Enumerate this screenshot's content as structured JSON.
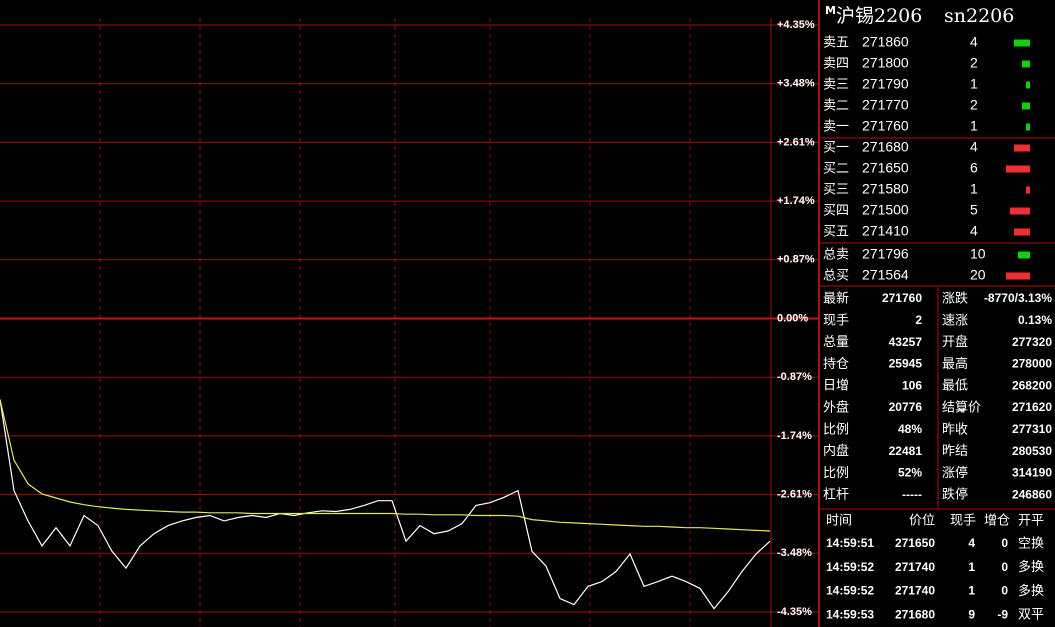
{
  "chart_data": {
    "type": "line",
    "categories": [
      null,
      null,
      null,
      null,
      null,
      null,
      null,
      null,
      null,
      null,
      null,
      null,
      null,
      null,
      null,
      null,
      null,
      null,
      null,
      null,
      null,
      null,
      null,
      null,
      null,
      null,
      null,
      null,
      null,
      null,
      null,
      null,
      null,
      null,
      null,
      null,
      null,
      null,
      null,
      null,
      null,
      null,
      null,
      null,
      null,
      null,
      null,
      null,
      null,
      null,
      null,
      null,
      null,
      null,
      null,
      null
    ],
    "series": [
      {
        "color": "#ffffff",
        "values": [
          -1.2,
          -2.55,
          -3.0,
          -3.37,
          -3.1,
          -3.37,
          -2.92,
          -3.07,
          -3.45,
          -3.7,
          -3.37,
          -3.19,
          -3.07,
          -3.0,
          -2.95,
          -2.92,
          -3.0,
          -2.95,
          -2.92,
          -2.95,
          -2.89,
          -2.92,
          -2.88,
          -2.85,
          -2.86,
          -2.83,
          -2.77,
          -2.7,
          -2.7,
          -3.3,
          -3.07,
          -3.19,
          -3.15,
          -3.04,
          -2.77,
          -2.73,
          -2.65,
          -2.55,
          -3.45,
          -3.67,
          -4.15,
          -4.24,
          -3.97,
          -3.9,
          -3.75,
          -3.49,
          -3.97,
          -3.9,
          -3.82,
          -3.9,
          -4.0,
          -4.3,
          -4.05,
          -3.75,
          -3.49,
          -3.3
        ]
      },
      {
        "color": "#e6e65a",
        "values": [
          -1.2,
          -2.1,
          -2.45,
          -2.6,
          -2.66,
          -2.72,
          -2.76,
          -2.79,
          -2.81,
          -2.83,
          -2.84,
          -2.85,
          -2.86,
          -2.87,
          -2.87,
          -2.88,
          -2.88,
          -2.88,
          -2.89,
          -2.89,
          -2.89,
          -2.89,
          -2.89,
          -2.89,
          -2.89,
          -2.89,
          -2.89,
          -2.89,
          -2.89,
          -2.9,
          -2.9,
          -2.91,
          -2.91,
          -2.91,
          -2.92,
          -2.92,
          -2.92,
          -2.93,
          -2.98,
          -3.0,
          -3.02,
          -3.03,
          -3.04,
          -3.05,
          -3.06,
          -3.07,
          -3.08,
          -3.08,
          -3.09,
          -3.1,
          -3.1,
          -3.11,
          -3.12,
          -3.13,
          -3.14,
          -3.15
        ]
      }
    ],
    "ylim": [
      -4.35,
      4.35
    ],
    "yticks": [
      {
        "value": 4.35,
        "label": "+4.35%"
      },
      {
        "value": 3.48,
        "label": "+3.48%"
      },
      {
        "value": 2.61,
        "label": "+2.61%"
      },
      {
        "value": 1.74,
        "label": "+1.74%"
      },
      {
        "value": 0.87,
        "label": "+0.87%"
      },
      {
        "value": 0,
        "label": "0.00%"
      },
      {
        "value": -0.87,
        "label": "-0.87%"
      },
      {
        "value": -1.74,
        "label": "-1.74%"
      },
      {
        "value": -2.61,
        "label": "-2.61%"
      },
      {
        "value": -3.48,
        "label": "-3.48%"
      },
      {
        "value": -4.35,
        "label": "-4.35%"
      }
    ],
    "grid": true
  },
  "quote": {
    "marker": "M",
    "name": "沪锡2206",
    "code": "sn2206"
  },
  "asks": [
    {
      "label": "卖五",
      "price": 271860,
      "volume": 4,
      "color": "#ff4040",
      "bar_color": "#10d010"
    },
    {
      "label": "卖四",
      "price": 271800,
      "volume": 2,
      "color": "#ff4040",
      "bar_color": "#10d010"
    },
    {
      "label": "卖三",
      "price": 271790,
      "volume": 1,
      "color": "#ff4040",
      "bar_color": "#10d010"
    },
    {
      "label": "卖二",
      "price": 271770,
      "volume": 2,
      "color": "#ff4040",
      "bar_color": "#10d010"
    },
    {
      "label": "卖一",
      "price": 271760,
      "volume": 1,
      "color": "#ff4040",
      "bar_color": "#10d010"
    }
  ],
  "bids": [
    {
      "label": "买一",
      "price": 271680,
      "volume": 4,
      "color": "#20e020",
      "bar_color": "#f03030"
    },
    {
      "label": "买二",
      "price": 271650,
      "volume": 6,
      "color": "#ff4040",
      "bar_color": "#f03030"
    },
    {
      "label": "买三",
      "price": 271580,
      "volume": 1,
      "color": "#20e020",
      "bar_color": "#f03030"
    },
    {
      "label": "买四",
      "price": 271500,
      "volume": 5,
      "color": "#20e020",
      "bar_color": "#f03030"
    },
    {
      "label": "买五",
      "price": 271410,
      "volume": 4,
      "color": "#20e020",
      "bar_color": "#f03030"
    }
  ],
  "totals": [
    {
      "label": "总卖",
      "price": 271796,
      "volume": 10,
      "color": "#20e020",
      "bar_color": "#10d010"
    },
    {
      "label": "总买",
      "price": 271564,
      "volume": 20,
      "color": "#20e020",
      "bar_color": "#f03030"
    }
  ],
  "stats": [
    [
      {
        "label": "最新",
        "value": 271760,
        "color": "#20e020"
      },
      {
        "label": "涨跌",
        "value": "-8770/3.13%",
        "color": "#20e020"
      }
    ],
    [
      {
        "label": "现手",
        "value": 2,
        "color": "#f0f040"
      },
      {
        "label": "速涨",
        "value": "0.13%",
        "color": "#ff4040"
      }
    ],
    [
      {
        "label": "总量",
        "value": 43257,
        "color": "#f0f040"
      },
      {
        "label": "开盘",
        "value": 277320,
        "color": "#20e020"
      }
    ],
    [
      {
        "label": "持仓",
        "value": 25945,
        "color": "#f0f040"
      },
      {
        "label": "最高",
        "value": 278000,
        "color": "#20e020"
      }
    ],
    [
      {
        "label": "日增",
        "value": 106,
        "color": "#f0f040"
      },
      {
        "label": "最低",
        "value": 268200,
        "color": "#20e020"
      }
    ],
    [
      {
        "label": "外盘",
        "value": 20776,
        "color": "#f0f040"
      },
      {
        "label": "结算价",
        "value": 271620,
        "color": "#20e020"
      }
    ],
    [
      {
        "label": "比例",
        "value": "48%",
        "color": "#f0f040"
      },
      {
        "label": "昨收",
        "value": 277310,
        "color": "#ffffff"
      }
    ],
    [
      {
        "label": "内盘",
        "value": 22481,
        "color": "#f0f040"
      },
      {
        "label": "昨结",
        "value": 280530,
        "color": "#ffffff"
      }
    ],
    [
      {
        "label": "比例",
        "value": "52%",
        "color": "#f0f040"
      },
      {
        "label": "涨停",
        "value": 314190,
        "color": "#ff4040"
      }
    ],
    [
      {
        "label": "杠杆",
        "value": "-----",
        "color": "#dddddd"
      },
      {
        "label": "跌停",
        "value": 246860,
        "color": "#20e020"
      }
    ]
  ],
  "trades": {
    "header": [
      "时间",
      "价位",
      "现手",
      "增仓",
      "开平"
    ],
    "rows": [
      [
        "14:59:51",
        271650,
        4,
        0,
        "空换"
      ],
      [
        "14:59:52",
        271740,
        1,
        0,
        "多换"
      ],
      [
        "14:59:52",
        271740,
        1,
        0,
        "多换"
      ],
      [
        "14:59:53",
        271680,
        9,
        -9,
        "双平"
      ]
    ],
    "colors": [
      [
        "#ffffff",
        "#20e020",
        "#20e020",
        "#f0f040",
        "#f0f040"
      ],
      [
        "#ffffff",
        "#20e020",
        "#ff4040",
        "#f0f040",
        "#f0f040"
      ],
      [
        "#ffffff",
        "#20e020",
        "#ff4040",
        "#f0f040",
        "#f0f040"
      ],
      [
        "#ffffff",
        "#20e020",
        "#ff4040",
        "#20e020",
        "#f0f040"
      ]
    ]
  }
}
